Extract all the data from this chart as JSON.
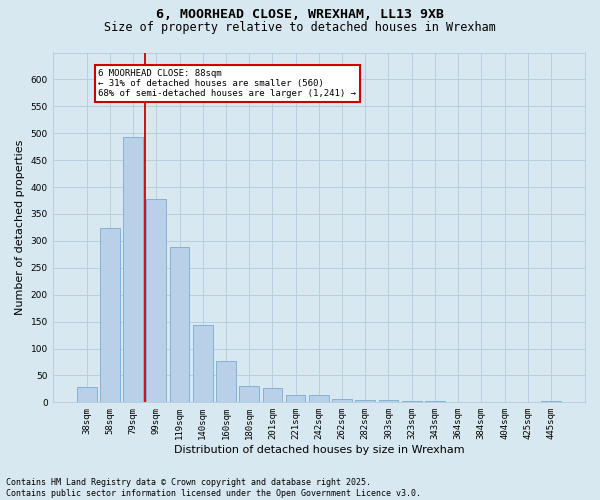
{
  "title_line1": "6, MOORHEAD CLOSE, WREXHAM, LL13 9XB",
  "title_line2": "Size of property relative to detached houses in Wrexham",
  "xlabel": "Distribution of detached houses by size in Wrexham",
  "ylabel": "Number of detached properties",
  "footnote": "Contains HM Land Registry data © Crown copyright and database right 2025.\nContains public sector information licensed under the Open Government Licence v3.0.",
  "categories": [
    "38sqm",
    "58sqm",
    "79sqm",
    "99sqm",
    "119sqm",
    "140sqm",
    "160sqm",
    "180sqm",
    "201sqm",
    "221sqm",
    "242sqm",
    "262sqm",
    "282sqm",
    "303sqm",
    "323sqm",
    "343sqm",
    "364sqm",
    "384sqm",
    "404sqm",
    "425sqm",
    "445sqm"
  ],
  "values": [
    28,
    323,
    493,
    378,
    288,
    143,
    76,
    30,
    27,
    14,
    14,
    6,
    4,
    4,
    2,
    2,
    1,
    1,
    1,
    0,
    3
  ],
  "bar_color": "#b8d0e8",
  "bar_edge_color": "#7aaad0",
  "vline_x": 2.5,
  "vline_color": "#cc0000",
  "annotation_text": "6 MOORHEAD CLOSE: 88sqm\n← 31% of detached houses are smaller (560)\n68% of semi-detached houses are larger (1,241) →",
  "annotation_box_color": "#cc0000",
  "annotation_bg": "#ffffff",
  "ylim": [
    0,
    650
  ],
  "yticks": [
    0,
    50,
    100,
    150,
    200,
    250,
    300,
    350,
    400,
    450,
    500,
    550,
    600
  ],
  "grid_color": "#b8cfe0",
  "bg_color": "#d8e8f0",
  "plot_bg_color": "#d8e8f0",
  "title_fontsize": 9.5,
  "subtitle_fontsize": 8.5,
  "tick_fontsize": 6.5,
  "label_fontsize": 8,
  "footnote_fontsize": 6
}
